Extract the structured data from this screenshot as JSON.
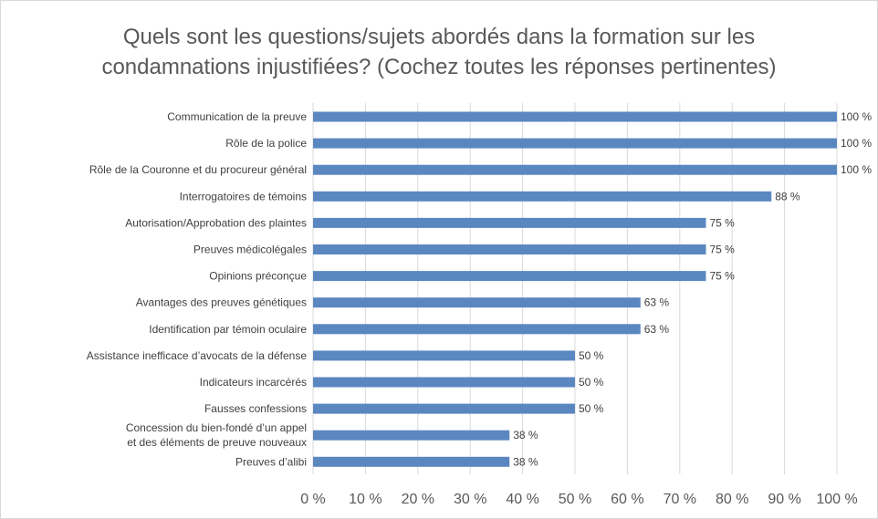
{
  "chart_data": {
    "type": "bar",
    "orientation": "horizontal",
    "title_lines": [
      "Quels sont les questions/sujets abordés dans la formation sur les",
      "condamnations injustifiées? (Cochez toutes les réponses pertinentes)"
    ],
    "categories": [
      "Communication de la preuve",
      "Rôle de la police",
      "Rôle de la Couronne et du procureur général",
      "Interrogatoires de témoins",
      "Autorisation/Approbation des plaintes",
      "Preuves médicolégales",
      "Opinions préconçue",
      "Avantages des preuves génétiques",
      "Identification par témoin oculaire",
      "Assistance inefficace d’avocats de la défense",
      "Indicateurs incarcérés",
      "Fausses confessions",
      [
        "Concession du bien-fondé d’un appel",
        "et des éléments de preuve nouveaux"
      ],
      "Preuves d’alibi"
    ],
    "values": [
      100,
      100,
      100,
      87.5,
      75,
      75,
      75,
      62.5,
      62.5,
      50,
      50,
      50,
      37.5,
      37.5
    ],
    "value_labels": [
      "100 %",
      "100 %",
      "100 %",
      "88 %",
      "75 %",
      "75 %",
      "75 %",
      "63 %",
      "63 %",
      "50 %",
      "50 %",
      "50 %",
      "38 %",
      "38 %"
    ],
    "x_ticks": [
      "0 %",
      "10 %",
      "20 %",
      "30 %",
      "40 %",
      "50 %",
      "60 %",
      "70 %",
      "80 %",
      "90 %",
      "100 %"
    ],
    "xlim": [
      0,
      100
    ],
    "grid": "vertical",
    "legend": "none",
    "bar_color": "#5b87c1",
    "grid_color": "#d9d9d9"
  }
}
